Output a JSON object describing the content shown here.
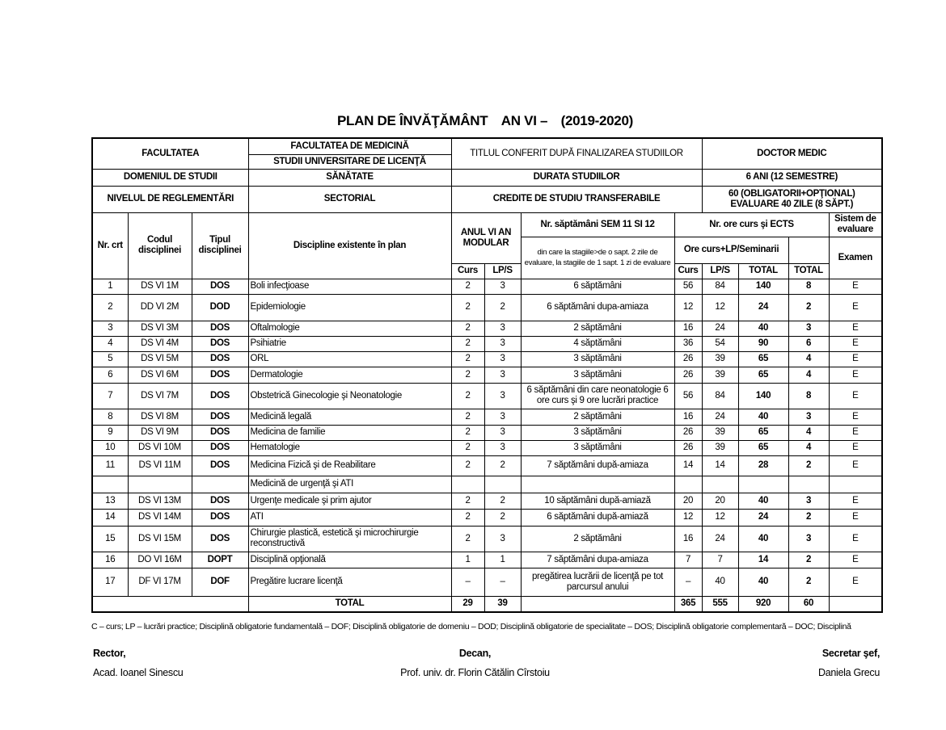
{
  "title": {
    "main": "PLAN DE ÎNVĂŢĂMÂNT",
    "year": "AN VI  –",
    "period": "(2019-2020)"
  },
  "header": {
    "facultatea_label": "FACULTATEA",
    "facultatea_value": "FACULTATEA DE MEDICINĂ",
    "studii": "STUDII UNIVERSITARE DE LICENŢĂ",
    "titlul_label": "TITLUL CONFERIT DUPĂ FINALIZAREA STUDIILOR",
    "titlul_value": "DOCTOR MEDIC",
    "domeniul_label": "DOMENIUL DE STUDII",
    "domeniul_value": "SĂNĂTATE",
    "durata_label": "DURATA STUDIILOR",
    "durata_value": "6 ANI (12 SEMESTRE)",
    "nivelul_label": "NIVELUL DE REGLEMENTĂRI",
    "nivelul_value": "SECTORIAL",
    "credite_label": "CREDITE DE STUDIU TRANSFERABILE",
    "credite_value_1": "60 (OBLIGATORII+OPŢIONAL)",
    "credite_value_2": "EVALUARE 40 ZILE (8 SĂPT.)"
  },
  "columns": {
    "nr": "Nr. crt",
    "cod": "Codul disciplinei",
    "tip": "Tipul disciplinei",
    "disc": "Discipline existente în plan",
    "anul": "ANUL VI AN MODULAR",
    "sapt": "Nr. săptămâni SEM 11 SI 12",
    "sapt_note": "din care la stagiile>de o sapt. 2 zile de evaluare, la stagiile de 1 sapt. 1 zi de evaluare",
    "ore": "Nr. ore curs şi ECTS",
    "ore_sub": "Ore curs+LP/Seminarii",
    "sistem": "Sistem de evaluare",
    "examen": "Examen",
    "curs": "Curs",
    "lps": "LP/S",
    "total": "TOTAL",
    "total_ects": "TOTAL"
  },
  "rows": [
    {
      "nr": "1",
      "cod": "DS VI 1M",
      "tip": "DOS",
      "disc": "Boli infecţioase",
      "c": "2",
      "l": "3",
      "s": "6 săptămâni",
      "oc": "56",
      "ol": "84",
      "t": "140",
      "e": "8",
      "ex": "E"
    },
    {
      "nr": "2",
      "cod": "DD VI 2M",
      "tip": "DOD",
      "disc": "Epidemiologie",
      "c": "2",
      "l": "2",
      "s": "6 săptămâni dupa-amiaza",
      "oc": "12",
      "ol": "12",
      "t": "24",
      "e": "2",
      "ex": "E"
    },
    {
      "nr": "3",
      "cod": "DS VI 3M",
      "tip": "DOS",
      "disc": "Oftalmologie",
      "c": "2",
      "l": "3",
      "s": "2 săptămâni",
      "oc": "16",
      "ol": "24",
      "t": "40",
      "e": "3",
      "ex": "E"
    },
    {
      "nr": "4",
      "cod": "DS VI 4M",
      "tip": "DOS",
      "disc": "Psihiatrie",
      "c": "2",
      "l": "3",
      "s": "4 săptămâni",
      "oc": "36",
      "ol": "54",
      "t": "90",
      "e": "6",
      "ex": "E"
    },
    {
      "nr": "5",
      "cod": "DS VI 5M",
      "tip": "DOS",
      "disc": "ORL",
      "c": "2",
      "l": "3",
      "s": "3 săptămâni",
      "oc": "26",
      "ol": "39",
      "t": "65",
      "e": "4",
      "ex": "E"
    },
    {
      "nr": "6",
      "cod": "DS VI 6M",
      "tip": "DOS",
      "disc": "Dermatologie",
      "c": "2",
      "l": "3",
      "s": "3 săptămâni",
      "oc": "26",
      "ol": "39",
      "t": "65",
      "e": "4",
      "ex": "E"
    },
    {
      "nr": "7",
      "cod": "DS VI 7M",
      "tip": "DOS",
      "disc": "Obstetrică Ginecologie şi Neonatologie",
      "c": "2",
      "l": "3",
      "s": "6 săptămâni din care neonatologie 6 ore curs şi 9 ore lucrări practice",
      "oc": "56",
      "ol": "84",
      "t": "140",
      "e": "8",
      "ex": "E"
    },
    {
      "nr": "8",
      "cod": "DS VI 8M",
      "tip": "DOS",
      "disc": "Medicină legală",
      "c": "2",
      "l": "3",
      "s": "2 săptămâni",
      "oc": "16",
      "ol": "24",
      "t": "40",
      "e": "3",
      "ex": "E"
    },
    {
      "nr": "9",
      "cod": "DS VI 9M",
      "tip": "DOS",
      "disc": "Medicina de familie",
      "c": "2",
      "l": "3",
      "s": "3 săptămâni",
      "oc": "26",
      "ol": "39",
      "t": "65",
      "e": "4",
      "ex": "E"
    },
    {
      "nr": "10",
      "cod": "DS VI 10M",
      "tip": "DOS",
      "disc": "Hematologie",
      "c": "2",
      "l": "3",
      "s": "3 săptămâni",
      "oc": "26",
      "ol": "39",
      "t": "65",
      "e": "4",
      "ex": "E"
    },
    {
      "nr": "11",
      "cod": "DS VI 11M",
      "tip": "DOS",
      "disc": "Medicina Fizică şi de Reabilitare",
      "c": "2",
      "l": "2",
      "s": "7 săptămâni după-amiaza",
      "oc": "14",
      "ol": "14",
      "t": "28",
      "e": "2",
      "ex": "E"
    },
    {
      "nr": "",
      "cod": "",
      "tip": "",
      "disc": "Medicină de urgenţă şi ATI",
      "c": "",
      "l": "",
      "s": "",
      "oc": "",
      "ol": "",
      "t": "",
      "e": "",
      "ex": ""
    },
    {
      "nr": "13",
      "cod": "DS VI 13M",
      "tip": "DOS",
      "disc": "Urgenţe medicale şi prim ajutor",
      "c": "2",
      "l": "2",
      "s": "10 săptămâni după-amiază",
      "oc": "20",
      "ol": "20",
      "t": "40",
      "e": "3",
      "ex": "E"
    },
    {
      "nr": "14",
      "cod": "DS VI 14M",
      "tip": "DOS",
      "disc": "ATI",
      "c": "2",
      "l": "2",
      "s": "6 săptămâni după-amiază",
      "oc": "12",
      "ol": "12",
      "t": "24",
      "e": "2",
      "ex": "E"
    },
    {
      "nr": "15",
      "cod": "DS VI 15M",
      "tip": "DOS",
      "disc": "Chirurgie plastică, estetică şi microchirurgie reconstructivă",
      "c": "2",
      "l": "3",
      "s": "2 săptămâni",
      "oc": "16",
      "ol": "24",
      "t": "40",
      "e": "3",
      "ex": "E"
    },
    {
      "nr": "16",
      "cod": "DO VI 16M",
      "tip": "DOPT",
      "disc": "Disciplină opţională",
      "c": "1",
      "l": "1",
      "s": "7 săptămâni dupa-amiaza",
      "oc": "7",
      "ol": "7",
      "t": "14",
      "e": "2",
      "ex": "E"
    },
    {
      "nr": "17",
      "cod": "DF VI 17M",
      "tip": "DOF",
      "disc": "Pregătire lucrare licenţă",
      "c": "–",
      "l": "–",
      "s": "pregătirea lucrării de licenţă pe tot parcursul anului",
      "oc": "–",
      "ol": "40",
      "t": "40",
      "e": "2",
      "ex": "E"
    }
  ],
  "total": {
    "label": "TOTAL",
    "c": "29",
    "l": "39",
    "oc": "365",
    "ol": "555",
    "t": "920",
    "e": "60"
  },
  "note": "C – curs; LP – lucrări practice; Disciplină obligatorie fundamentală – DOF; Disciplină obligatorie de domeniu – DOD; Disciplină obligatorie de specialitate – DOS; Disciplină obligatorie complementară – DOC; Disciplină",
  "signatures": [
    {
      "role": "Rector,",
      "name": "Acad. Ioanel Sinescu"
    },
    {
      "role": "Decan,",
      "name": "Prof. univ. dr. Florin Cătălin Cîrstoiu"
    },
    {
      "role": "Secretar şef,",
      "name": "Daniela Grecu"
    }
  ]
}
